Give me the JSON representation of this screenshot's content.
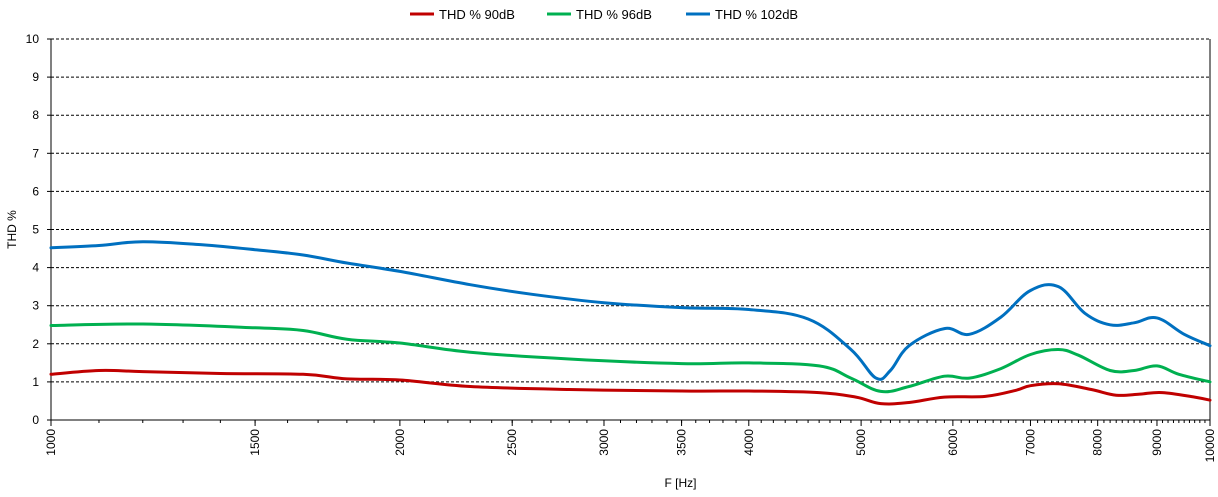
{
  "chart_data": {
    "type": "line",
    "title": "",
    "xlabel": "F [Hz]",
    "ylabel": "THD %",
    "xscale": "log",
    "xlim": [
      1000,
      10000
    ],
    "ylim": [
      0,
      10
    ],
    "grid": "horizontal dashed",
    "legend_position": "top",
    "yticks": [
      "0",
      "1",
      "2",
      "3",
      "4",
      "5",
      "6",
      "7",
      "8",
      "9",
      "10"
    ],
    "xticks": [
      "1000",
      "1500",
      "2000",
      "2500",
      "3000",
      "3500",
      "4000",
      "5000",
      "6000",
      "7000",
      "8000",
      "9000",
      "10000"
    ],
    "series": [
      {
        "name": "THD % 90dB",
        "color": "#c00000",
        "x": [
          1000,
          1100,
          1200,
          1400,
          1650,
          1800,
          2000,
          2300,
          2800,
          3500,
          4000,
          4600,
          4950,
          5200,
          5500,
          5900,
          6400,
          6800,
          7000,
          7400,
          7900,
          8300,
          8700,
          9100,
          9700,
          10000
        ],
        "y": [
          1.2,
          1.3,
          1.27,
          1.22,
          1.2,
          1.08,
          1.05,
          0.88,
          0.8,
          0.76,
          0.76,
          0.72,
          0.6,
          0.43,
          0.46,
          0.6,
          0.62,
          0.78,
          0.9,
          0.95,
          0.8,
          0.65,
          0.68,
          0.72,
          0.6,
          0.52
        ]
      },
      {
        "name": "THD % 96dB",
        "color": "#00b050",
        "x": [
          1000,
          1200,
          1500,
          1650,
          1800,
          2000,
          2300,
          2800,
          3500,
          4000,
          4600,
          4900,
          5200,
          5500,
          5900,
          6200,
          6600,
          7000,
          7400,
          7700,
          8200,
          8600,
          9000,
          9400,
          10000
        ],
        "y": [
          2.48,
          2.52,
          2.42,
          2.35,
          2.12,
          2.02,
          1.78,
          1.6,
          1.48,
          1.5,
          1.42,
          1.1,
          0.75,
          0.88,
          1.15,
          1.1,
          1.35,
          1.72,
          1.85,
          1.7,
          1.3,
          1.3,
          1.42,
          1.2,
          1.0
        ]
      },
      {
        "name": "THD % 102dB",
        "color": "#0070c0",
        "x": [
          1000,
          1100,
          1200,
          1350,
          1500,
          1650,
          1800,
          2000,
          2300,
          2600,
          3000,
          3500,
          4000,
          4500,
          4900,
          5150,
          5300,
          5500,
          5900,
          6200,
          6600,
          7000,
          7400,
          7800,
          8200,
          8600,
          9000,
          9500,
          10000
        ],
        "y": [
          4.52,
          4.58,
          4.68,
          4.6,
          4.47,
          4.33,
          4.12,
          3.9,
          3.55,
          3.3,
          3.08,
          2.95,
          2.9,
          2.65,
          1.85,
          1.1,
          1.3,
          1.95,
          2.4,
          2.25,
          2.7,
          3.4,
          3.5,
          2.8,
          2.5,
          2.55,
          2.68,
          2.25,
          1.95
        ]
      }
    ]
  }
}
